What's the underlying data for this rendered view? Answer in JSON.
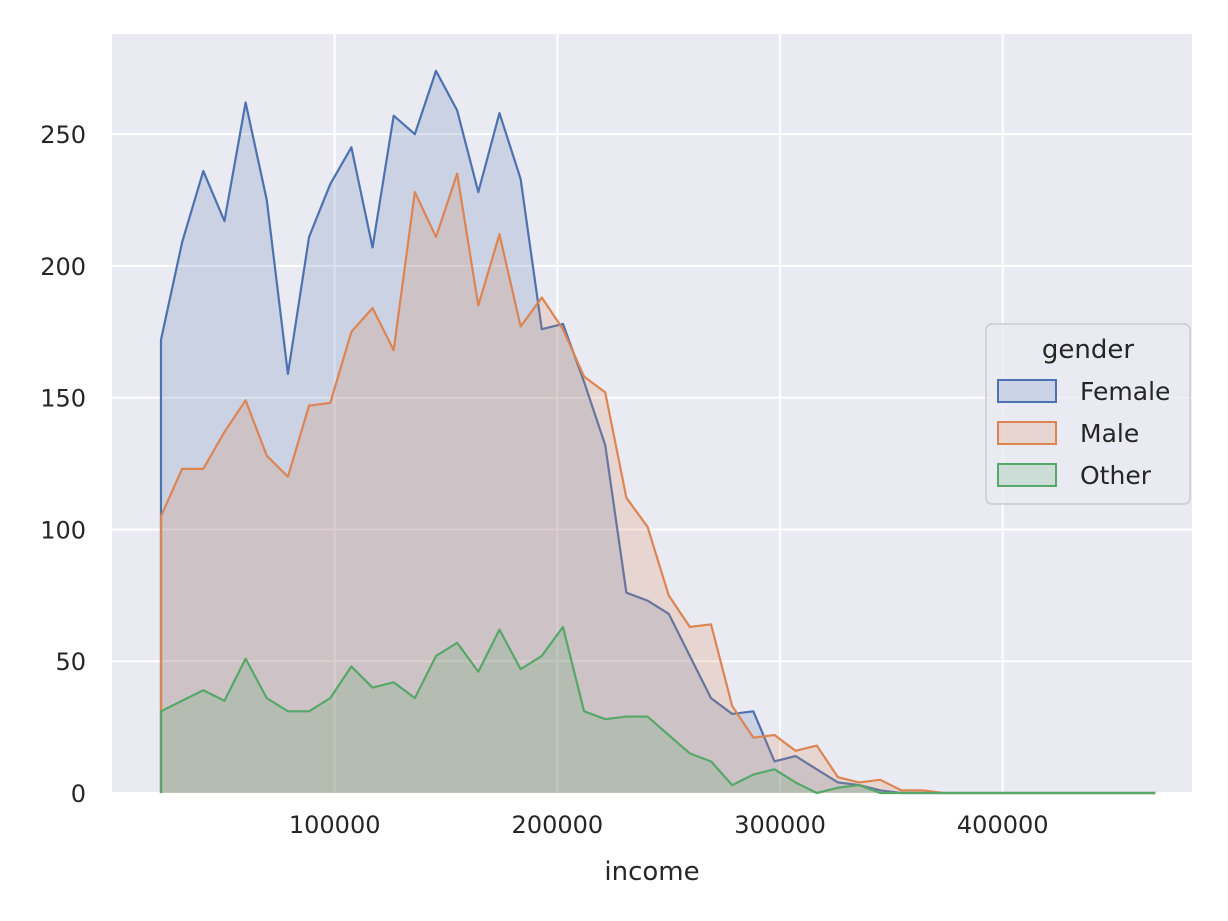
{
  "chart_data": {
    "type": "area",
    "title": "",
    "xlabel": "income",
    "ylabel": "",
    "xlim": [
      0,
      485000
    ],
    "ylim": [
      0,
      288
    ],
    "grid": true,
    "legend": {
      "title": "gender",
      "placement": "center-right"
    },
    "xticks": [
      100000,
      200000,
      300000,
      400000
    ],
    "yticks": [
      0,
      50,
      100,
      150,
      200,
      250
    ],
    "x": [
      22000,
      31500,
      41000,
      50500,
      60000,
      69500,
      79000,
      88500,
      98000,
      107500,
      117000,
      126500,
      136000,
      145500,
      155000,
      164500,
      174000,
      183500,
      193000,
      202500,
      212000,
      221500,
      231000,
      240500,
      250000,
      259500,
      269000,
      278500,
      288000,
      297500,
      307000,
      316500,
      326000,
      335500,
      345000,
      354500,
      364000,
      373500,
      383000,
      392500,
      402000,
      411500,
      421000,
      430500,
      440000,
      449500,
      459000,
      468500
    ],
    "series": [
      {
        "name": "Female",
        "color": "#4c72b0",
        "values": [
          172,
          209,
          236,
          217,
          262,
          225,
          159,
          211,
          231,
          245,
          207,
          257,
          250,
          274,
          259,
          228,
          258,
          233,
          176,
          178,
          156,
          132,
          76,
          73,
          68,
          52,
          36,
          30,
          31,
          12,
          14,
          9,
          4,
          3,
          1,
          0,
          0,
          0,
          0,
          0,
          0,
          0,
          0,
          0,
          0,
          0,
          0,
          0
        ]
      },
      {
        "name": "Male",
        "color": "#dd8452",
        "values": [
          105,
          123,
          123,
          137,
          149,
          128,
          120,
          147,
          148,
          175,
          184,
          168,
          228,
          211,
          235,
          185,
          212,
          177,
          188,
          176,
          158,
          152,
          112,
          101,
          75,
          63,
          64,
          33,
          21,
          22,
          16,
          18,
          6,
          4,
          5,
          1,
          1,
          0,
          0,
          0,
          0,
          0,
          0,
          0,
          0,
          0,
          0,
          0
        ]
      },
      {
        "name": "Other",
        "color": "#55a868",
        "values": [
          31,
          35,
          39,
          35,
          51,
          36,
          31,
          31,
          36,
          48,
          40,
          42,
          36,
          52,
          57,
          46,
          62,
          47,
          52,
          63,
          31,
          28,
          29,
          29,
          22,
          15,
          12,
          3,
          7,
          9,
          4,
          0,
          2,
          3,
          0,
          0,
          0,
          0,
          0,
          0,
          0,
          0,
          0,
          0,
          0,
          0,
          0,
          0
        ]
      }
    ]
  }
}
